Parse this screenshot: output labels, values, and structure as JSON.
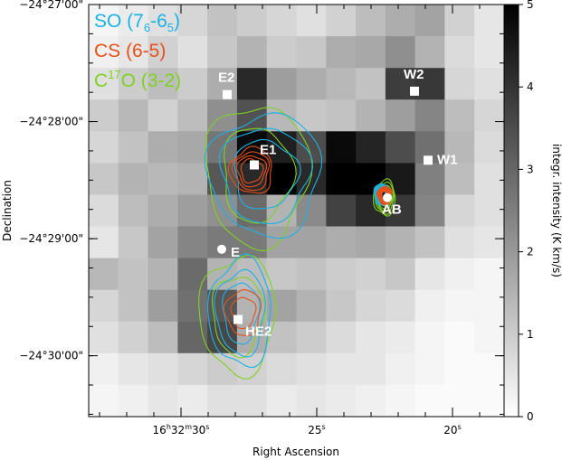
{
  "chart_data": {
    "type": "heatmap",
    "xlabel": "Right Ascension",
    "ylabel": "Declination",
    "colorbar_label": "integr. intensity (K km/s)",
    "colorbar_range": [
      0,
      5
    ],
    "colorbar_ticks": [
      "0",
      "1",
      "2",
      "3",
      "4",
      "5"
    ],
    "x_ticks": [
      {
        "ra_s": 30,
        "h": "16",
        "m": "32",
        "s": "30"
      },
      {
        "ra_s": 25,
        "s": "25"
      },
      {
        "ra_s": 20,
        "s": "20"
      }
    ],
    "y_ticks": [
      {
        "dec_min": 27,
        "label": "−24°27'00\""
      },
      {
        "dec_min": 28,
        "label": "−24°28'00\""
      },
      {
        "dec_min": 29,
        "label": "−24°29'00\""
      },
      {
        "dec_min": 30,
        "label": "−24°30'00\""
      }
    ],
    "ra_range_s": [
      33.4,
      18.1
    ],
    "dec_range_min": [
      27.0,
      30.52
    ],
    "legend": [
      {
        "text_main": "SO (7",
        "sub1": "6",
        "mid": "-6",
        "sub2": "5",
        "close": ")",
        "color": "#19b2e6"
      },
      {
        "text": "CS (6-5)",
        "color": "#e8501a"
      },
      {
        "pre": "C",
        "sup": "17",
        "post": "O (3-2)",
        "color": "#7ed321"
      }
    ],
    "sources": [
      {
        "name": "E2",
        "ra_s": 28.3,
        "dec_min": 27.77,
        "marker": "square"
      },
      {
        "name": "E1",
        "ra_s": 27.3,
        "dec_min": 28.37,
        "marker": "square"
      },
      {
        "name": "W2",
        "ra_s": 21.4,
        "dec_min": 27.74,
        "marker": "square"
      },
      {
        "name": "W1",
        "ra_s": 20.9,
        "dec_min": 28.33,
        "marker": "square"
      },
      {
        "name": "AB",
        "ra_s": 22.4,
        "dec_min": 28.65,
        "marker": "circle"
      },
      {
        "name": "E",
        "ra_s": 28.5,
        "dec_min": 29.09,
        "marker": "circle"
      },
      {
        "name": "HE2",
        "ra_s": 27.9,
        "dec_min": 29.69,
        "marker": "square"
      }
    ],
    "pixel_grid": {
      "ncols": 14,
      "nrows": 13,
      "values": [
        [
          0.2,
          0.4,
          0.6,
          0.8,
          1.2,
          1.0,
          0.8,
          0.6,
          0.9,
          1.3,
          1.6,
          1.8,
          0.9,
          0.5
        ],
        [
          0.3,
          0.5,
          0.9,
          0.6,
          1.1,
          1.5,
          1.0,
          1.1,
          1.6,
          1.7,
          2.2,
          1.5,
          0.7,
          0.5
        ],
        [
          0.6,
          1.0,
          1.3,
          1.0,
          1.6,
          4.2,
          1.9,
          1.6,
          1.4,
          1.2,
          3.8,
          3.9,
          0.8,
          0.6
        ],
        [
          1.0,
          1.4,
          0.9,
          1.3,
          2.2,
          3.4,
          1.4,
          1.1,
          1.2,
          1.5,
          1.9,
          2.4,
          1.3,
          0.8
        ],
        [
          0.8,
          1.2,
          1.6,
          1.7,
          2.7,
          4.8,
          4.4,
          3.5,
          4.8,
          4.3,
          3.5,
          2.8,
          1.4,
          0.7
        ],
        [
          1.1,
          1.5,
          1.4,
          1.5,
          3.3,
          4.2,
          5.0,
          4.2,
          5.0,
          5.0,
          4.5,
          2.5,
          1.3,
          0.6
        ],
        [
          0.7,
          1.3,
          1.6,
          1.9,
          2.2,
          2.9,
          1.5,
          2.3,
          3.7,
          4.2,
          3.9,
          2.4,
          0.8,
          0.6
        ],
        [
          0.5,
          1.1,
          1.8,
          2.4,
          2.6,
          2.6,
          1.8,
          1.8,
          1.6,
          1.7,
          1.5,
          1.2,
          0.6,
          0.5
        ],
        [
          1.4,
          1.2,
          1.5,
          2.9,
          1.5,
          1.3,
          1.1,
          1.2,
          1.0,
          0.9,
          1.1,
          0.5,
          0.3,
          0.2
        ],
        [
          0.8,
          1.2,
          1.9,
          2.8,
          3.3,
          1.5,
          1.8,
          1.5,
          1.1,
          0.8,
          0.7,
          0.3,
          0.2,
          0.2
        ],
        [
          0.6,
          0.9,
          1.3,
          3.0,
          3.6,
          1.6,
          1.2,
          1.0,
          0.7,
          0.5,
          0.4,
          0.2,
          0.1,
          0.2
        ],
        [
          0.3,
          0.5,
          0.6,
          0.8,
          1.0,
          0.9,
          0.7,
          0.6,
          0.5,
          0.5,
          0.3,
          0.2,
          0.1,
          0.1
        ],
        [
          0.2,
          0.3,
          0.5,
          0.4,
          0.6,
          0.6,
          0.4,
          0.5,
          0.4,
          0.3,
          0.2,
          0.1,
          0.1,
          0.1
        ]
      ]
    },
    "contours": {
      "SO": {
        "color": "#19b2e6",
        "centers": [
          {
            "ra_s": 22.6,
            "dec_min": 28.62,
            "rx": 0.25,
            "ry": 0.08,
            "n": 9
          },
          {
            "ra_s": 26.9,
            "dec_min": 28.45,
            "rx": 1.8,
            "ry": 0.45,
            "n": 3
          },
          {
            "ra_s": 27.8,
            "dec_min": 29.63,
            "rx": 1.0,
            "ry": 0.4,
            "n": 3
          }
        ]
      },
      "CS": {
        "color": "#e8501a",
        "centers": [
          {
            "ra_s": 22.5,
            "dec_min": 28.63,
            "rx": 0.2,
            "ry": 0.06,
            "n": 10
          },
          {
            "ra_s": 27.4,
            "dec_min": 28.42,
            "rx": 0.6,
            "ry": 0.15,
            "n": 4
          },
          {
            "ra_s": 27.7,
            "dec_min": 29.63,
            "rx": 0.5,
            "ry": 0.15,
            "n": 2
          }
        ]
      },
      "C17O": {
        "color": "#7ed321",
        "centers": [
          {
            "ra_s": 22.5,
            "dec_min": 28.65,
            "rx": 0.4,
            "ry": 0.15,
            "n": 5
          },
          {
            "ra_s": 27.2,
            "dec_min": 28.45,
            "rx": 1.9,
            "ry": 0.6,
            "n": 2
          },
          {
            "ra_s": 27.9,
            "dec_min": 29.65,
            "rx": 1.4,
            "ry": 0.5,
            "n": 2
          }
        ]
      }
    }
  }
}
